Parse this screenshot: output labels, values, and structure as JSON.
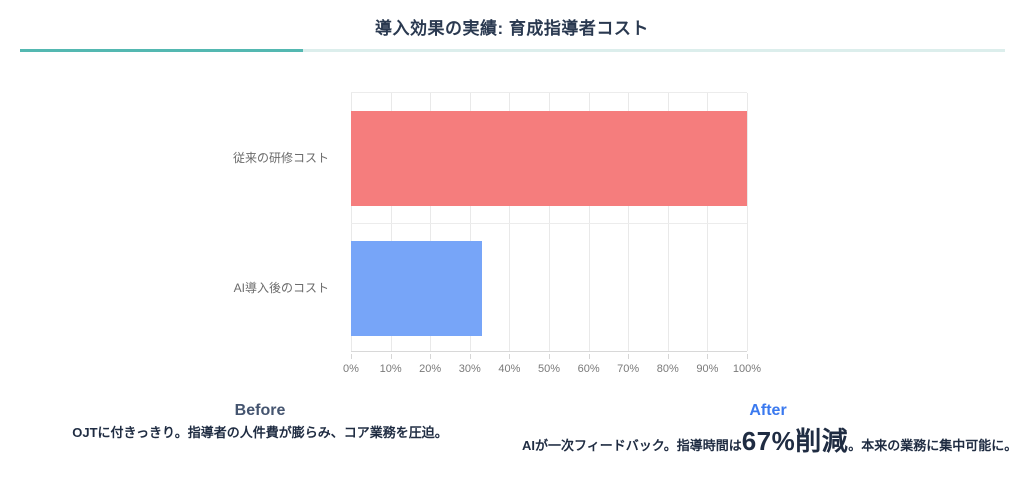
{
  "header": {
    "title": "導入効果の実績: 育成指導者コスト",
    "accent_color": "#54b8b1",
    "divider_rest_color": "#dceeec"
  },
  "chart_data": {
    "type": "bar",
    "orientation": "horizontal",
    "title": "",
    "xlabel": "",
    "ylabel": "",
    "categories": [
      "従来の研修コスト",
      "AI導入後のコスト"
    ],
    "values": [
      100,
      33
    ],
    "bar_colors": [
      "#f57d7d",
      "#77a5f8"
    ],
    "xlim": [
      0,
      100
    ],
    "x_ticks": [
      "0%",
      "10%",
      "20%",
      "30%",
      "40%",
      "50%",
      "60%",
      "70%",
      "80%",
      "90%",
      "100%"
    ],
    "grid": true,
    "legend": "none"
  },
  "footnotes": {
    "before": {
      "heading": "Before",
      "heading_color": "#44546f",
      "description": "OJTに付きっきり。指導者の人件費が膨らみ、コア業務を圧迫。"
    },
    "after": {
      "heading": "After",
      "heading_color": "#3a79ef",
      "description_prefix": "AIが一次フィードバック。指導時間は",
      "highlight": "67%削減",
      "description_suffix": "。本来の業務に集中可能に。"
    }
  }
}
